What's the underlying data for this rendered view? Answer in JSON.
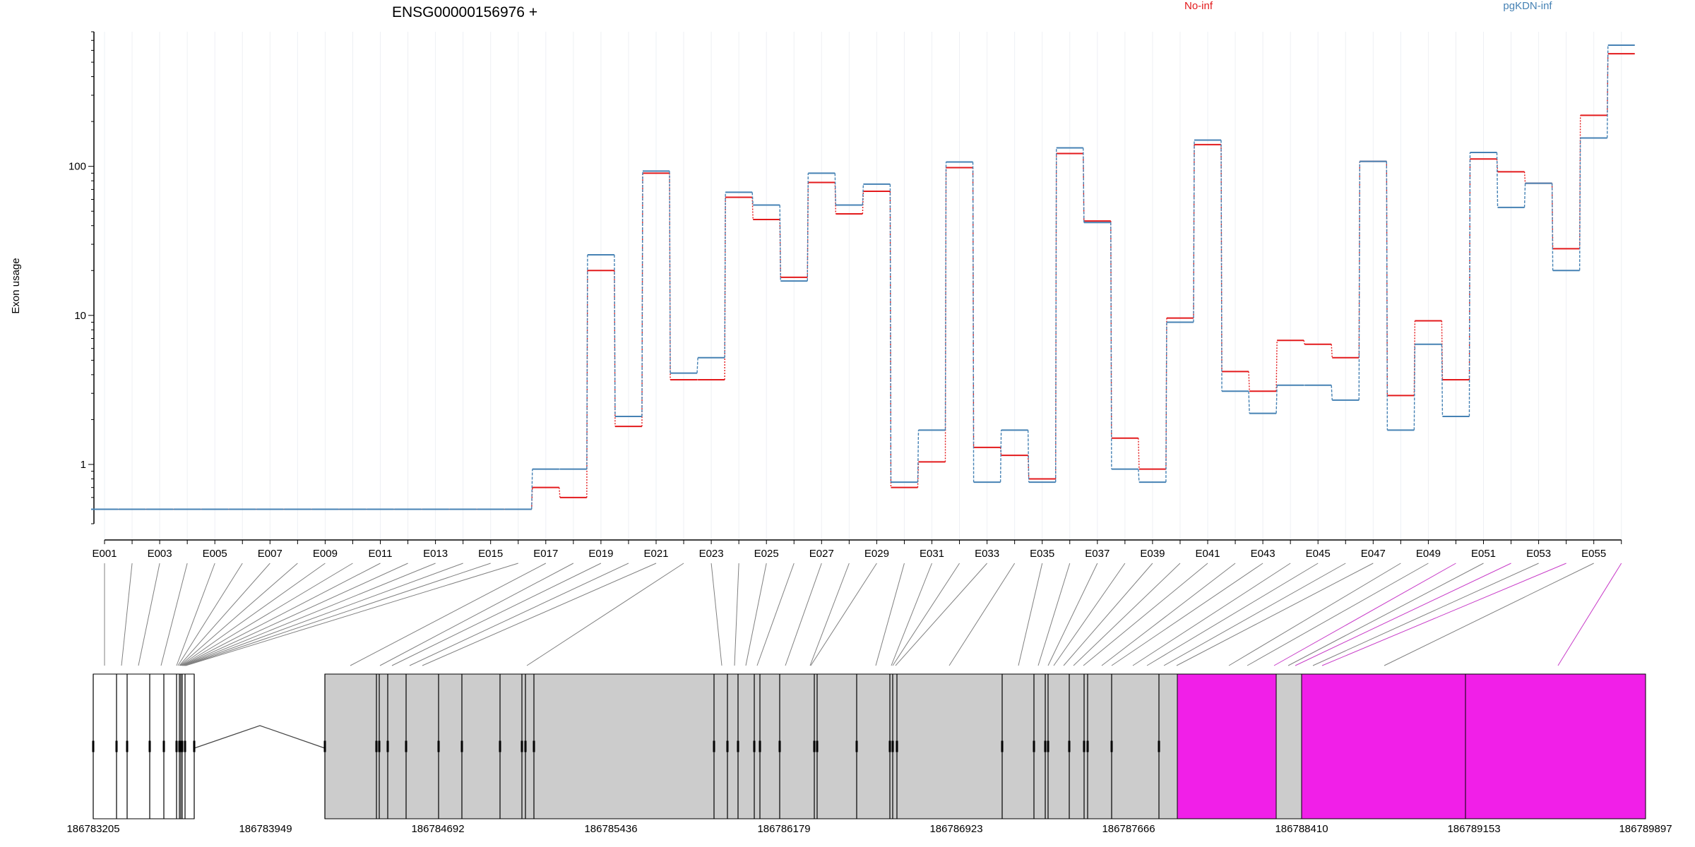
{
  "title": "ENSG00000156976 +",
  "ylabel": "Exon usage",
  "colors": {
    "No-inf": "#e31a1c",
    "pgKDN-inf": "#4682b4",
    "gene_model_fill": "#cccccc",
    "highlight_fill": "#f11fe8",
    "connector": "#808080",
    "highlight_connector": "#c83cc8"
  },
  "legend": [
    "No-inf",
    "pgKDN-inf"
  ],
  "genomic_coords": [
    "186783205",
    "186783949",
    "186784692",
    "186785436",
    "186786179",
    "186786923",
    "186787666",
    "186788410",
    "186789153",
    "186789897"
  ],
  "chart_data": {
    "type": "line",
    "title": "ENSG00000156976 +",
    "ylabel": "Exon usage",
    "xlabel": "",
    "y_scale": "log",
    "ylim": [
      0.4,
      800
    ],
    "y_ticks": [
      1,
      10,
      100
    ],
    "grid": "vertical lines at each exon",
    "legend_position": "top",
    "x_tick_labels": [
      "E001",
      "E003",
      "E005",
      "E007",
      "E009",
      "E011",
      "E013",
      "E015",
      "E017",
      "E019",
      "E021",
      "E023",
      "E025",
      "E027",
      "E029",
      "E031",
      "E033",
      "E035",
      "E037",
      "E039",
      "E041",
      "E043",
      "E045",
      "E047",
      "E049",
      "E051",
      "E053",
      "E055"
    ],
    "categories": [
      "E001",
      "E002",
      "E003",
      "E004",
      "E005",
      "E006",
      "E007",
      "E008",
      "E009",
      "E010",
      "E011",
      "E012",
      "E013",
      "E014",
      "E015",
      "E016",
      "E017",
      "E018",
      "E019",
      "E020",
      "E021",
      "E022",
      "E023",
      "E024",
      "E025",
      "E026",
      "E027",
      "E028",
      "E029",
      "E030",
      "E031",
      "E032",
      "E033",
      "E034",
      "E035",
      "E036",
      "E037",
      "E038",
      "E039",
      "E040",
      "E041",
      "E042",
      "E043",
      "E044",
      "E045",
      "E046",
      "E047",
      "E048",
      "E049",
      "E050",
      "E051",
      "E052",
      "E053",
      "E054",
      "E055",
      "E056"
    ],
    "series": [
      {
        "name": "No-inf",
        "values": [
          0.5,
          0.5,
          0.5,
          0.5,
          0.5,
          0.5,
          0.5,
          0.5,
          0.5,
          0.5,
          0.5,
          0.5,
          0.5,
          0.5,
          0.5,
          0.5,
          0.7,
          0.6,
          20,
          1.8,
          90,
          3.7,
          3.7,
          62,
          44,
          18,
          78,
          48,
          68,
          0.7,
          1.04,
          98,
          1.3,
          1.15,
          0.8,
          122,
          43,
          1.5,
          0.93,
          9.6,
          140,
          4.2,
          3.1,
          6.8,
          6.4,
          5.2,
          108,
          2.9,
          9.2,
          3.7,
          112,
          92,
          77,
          28,
          220,
          570
        ]
      },
      {
        "name": "pgKDN-inf",
        "values": [
          0.5,
          0.5,
          0.5,
          0.5,
          0.5,
          0.5,
          0.5,
          0.5,
          0.5,
          0.5,
          0.5,
          0.5,
          0.5,
          0.5,
          0.5,
          0.5,
          0.93,
          0.93,
          25.5,
          2.1,
          93,
          4.1,
          5.2,
          67,
          55,
          17,
          90,
          55,
          76,
          0.76,
          1.7,
          107,
          0.76,
          1.7,
          0.76,
          133,
          42,
          0.93,
          0.76,
          9,
          150,
          3.1,
          2.2,
          3.4,
          3.4,
          2.7,
          108,
          1.7,
          6.4,
          2.1,
          124,
          53,
          77,
          20,
          155,
          650
        ]
      }
    ]
  }
}
